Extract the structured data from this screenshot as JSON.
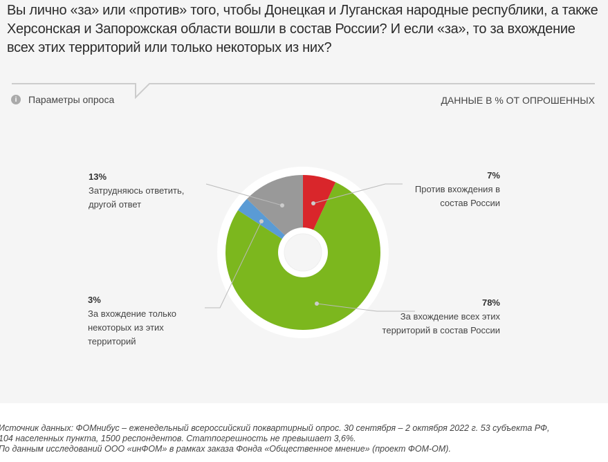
{
  "question": "Вы лично «за» или «против» того, чтобы Донецкая и Луганская народные республики, а также Херсонская и Запорожская области вошли в состав России? И если «за», то за вхождение всех этих территорий или только некоторых из них?",
  "params_label": "Параметры опроса",
  "units_label": "ДАННЫЕ В % ОТ ОПРОШЕННЫХ",
  "chart_data": {
    "type": "pie",
    "donut": true,
    "slices": [
      {
        "label": "Против вхождения в состав России",
        "value": 7,
        "display": "7%",
        "color": "#d9262b"
      },
      {
        "label": "За вхождение всех этих территорий в состав России",
        "value": 78,
        "display": "78%",
        "color": "#7cb71e"
      },
      {
        "label": "За вхождение только некоторых из этих территорий",
        "value": 3,
        "display": "3%",
        "color": "#5a9bd5"
      },
      {
        "label": "Затрудняюсь ответить, другой ответ",
        "value": 13,
        "display": "13%",
        "color": "#999999"
      }
    ]
  },
  "footer": {
    "line1": "Источник данных: ФОМнибус – еженедельный всероссийский поквартирный опрос. 30 сентября – 2 октября 2022 г. 53 субъекта РФ,",
    "line2": "104 населенных пункта, 1500 респондентов. Статпогрешность не превышает 3,6%.",
    "line3": "По данным исследований ООО «инФОМ» в рамках заказа Фонда «Общественное мнение» (проект ФОМ-ОМ)."
  }
}
